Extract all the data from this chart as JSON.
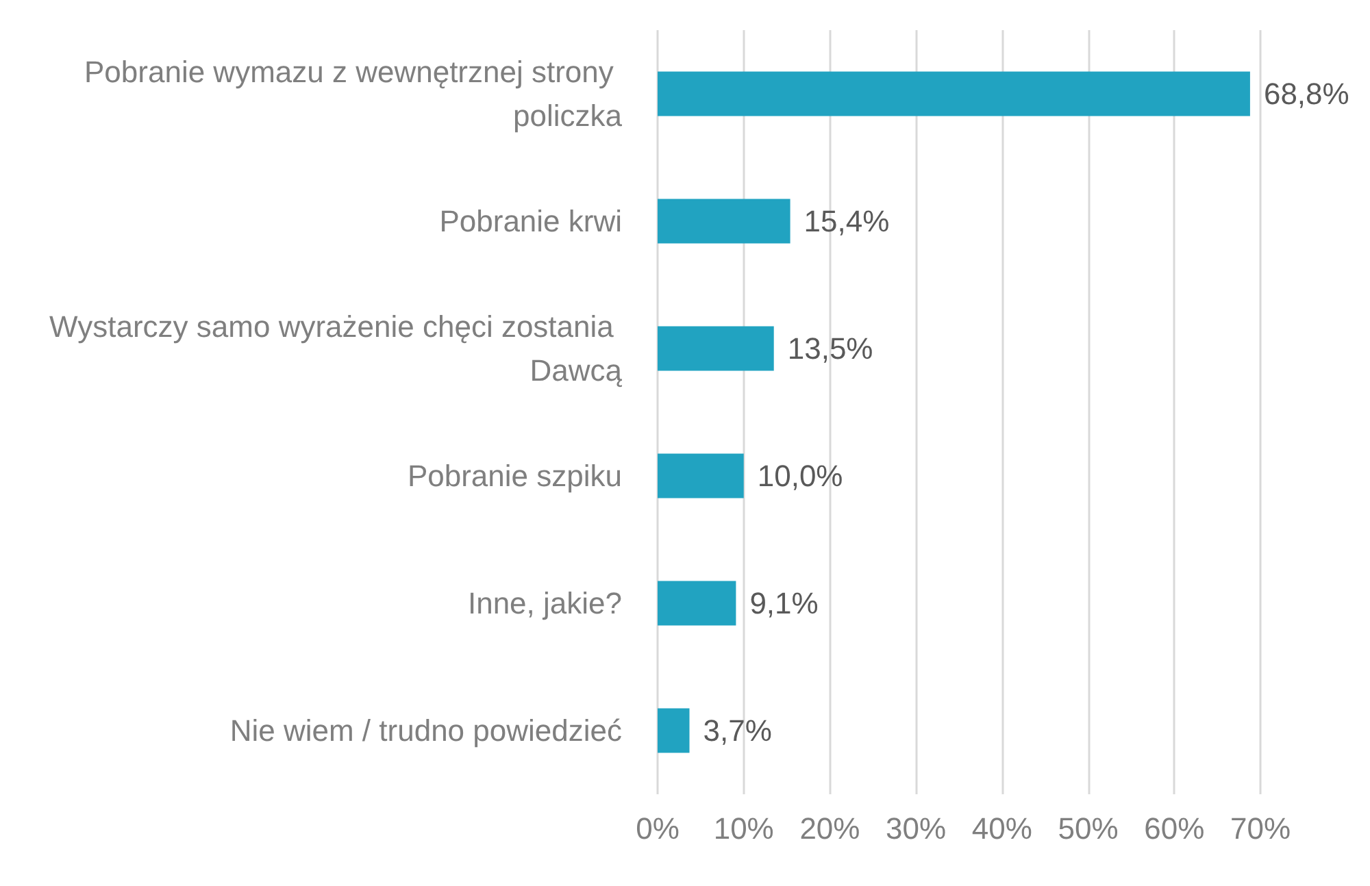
{
  "chart_data": {
    "type": "bar",
    "orientation": "horizontal",
    "categories": [
      "Pobranie wymazu z wewnętrznej strony policzka",
      "Pobranie krwi",
      "Wystarczy samo wyrażenie chęci zostania Dawcą",
      "Pobranie szpiku",
      "Inne, jakie?",
      "Nie wiem / trudno powiedzieć"
    ],
    "values": [
      68.8,
      15.4,
      13.5,
      10.0,
      9.1,
      3.7
    ],
    "value_labels": [
      "68,8%",
      "15,4%",
      "13,5%",
      "10,0%",
      "9,1%",
      "3,7%"
    ],
    "color": "#21a3c1",
    "xlim": [
      0,
      70
    ],
    "xticks": [
      {
        "value": 0,
        "label": "0%"
      },
      {
        "value": 10,
        "label": "10%"
      },
      {
        "value": 20,
        "label": "20%"
      },
      {
        "value": 30,
        "label": "30%"
      },
      {
        "value": 40,
        "label": "40%"
      },
      {
        "value": 50,
        "label": "50%"
      },
      {
        "value": 60,
        "label": "60%"
      },
      {
        "value": 70,
        "label": "70%"
      }
    ],
    "grid": "x"
  }
}
